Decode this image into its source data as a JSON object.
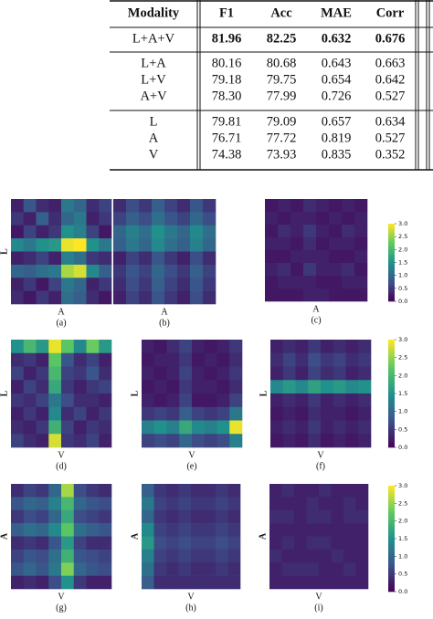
{
  "table": {
    "header": [
      "Modality",
      "F1",
      "Acc",
      "MAE",
      "Corr"
    ],
    "rows": [
      [
        "L+A+V",
        "81.96",
        "82.25",
        "0.632",
        "0.676"
      ],
      [
        "L+A",
        "80.16",
        "80.68",
        "0.643",
        "0.663"
      ],
      [
        "L+V",
        "79.18",
        "79.75",
        "0.654",
        "0.642"
      ],
      [
        "A+V",
        "78.30",
        "77.99",
        "0.726",
        "0.527"
      ],
      [
        "L",
        "79.81",
        "79.09",
        "0.657",
        "0.634"
      ],
      [
        "A",
        "76.71",
        "77.72",
        "0.819",
        "0.527"
      ],
      [
        "V",
        "74.38",
        "73.93",
        "0.835",
        "0.352"
      ]
    ]
  },
  "figures": [
    {
      "label": "(a)",
      "x_label": "A",
      "y_label": "L",
      "values": [
        [
          0.3,
          0.8,
          0.4,
          0.3,
          1.2,
          1.0,
          0.4,
          0.6
        ],
        [
          0.5,
          0.3,
          0.9,
          0.4,
          1.0,
          1.2,
          0.3,
          0.5
        ],
        [
          0.2,
          0.6,
          0.3,
          0.5,
          1.5,
          1.3,
          0.6,
          0.2
        ],
        [
          1.4,
          1.2,
          1.5,
          1.6,
          2.9,
          3.0,
          1.5,
          1.2
        ],
        [
          0.3,
          0.4,
          0.6,
          0.3,
          1.3,
          1.1,
          0.5,
          0.4
        ],
        [
          1.0,
          0.9,
          1.1,
          1.2,
          2.6,
          2.8,
          1.4,
          0.9
        ],
        [
          0.3,
          0.5,
          0.2,
          0.6,
          1.2,
          1.0,
          0.3,
          0.5
        ],
        [
          0.4,
          0.2,
          0.5,
          0.3,
          1.1,
          0.9,
          0.4,
          0.2
        ]
      ]
    },
    {
      "label": "(b)",
      "x_label": "A",
      "values": [
        [
          0.4,
          0.7,
          0.5,
          0.9,
          0.6,
          0.4,
          0.8,
          0.5
        ],
        [
          0.6,
          0.9,
          0.7,
          1.1,
          0.8,
          0.6,
          1.0,
          0.7
        ],
        [
          1.0,
          1.3,
          1.1,
          1.5,
          1.2,
          1.0,
          1.4,
          1.1
        ],
        [
          0.9,
          1.2,
          1.0,
          1.4,
          1.1,
          0.9,
          1.3,
          1.0
        ],
        [
          0.3,
          0.6,
          0.4,
          0.8,
          0.5,
          0.3,
          0.7,
          0.4
        ],
        [
          0.5,
          0.8,
          0.6,
          1.0,
          0.7,
          0.5,
          0.9,
          0.6
        ],
        [
          0.4,
          0.7,
          0.5,
          0.9,
          0.6,
          0.4,
          0.8,
          0.5
        ],
        [
          0.3,
          0.6,
          0.4,
          0.8,
          0.5,
          0.3,
          0.7,
          0.4
        ]
      ]
    },
    {
      "label": "(c)",
      "x_label": "A",
      "values": [
        [
          0.2,
          0.3,
          0.2,
          0.4,
          0.3,
          0.2,
          0.3,
          0.2
        ],
        [
          0.3,
          0.2,
          0.3,
          0.3,
          0.2,
          0.3,
          0.2,
          0.3
        ],
        [
          0.2,
          0.4,
          0.3,
          0.5,
          0.3,
          0.2,
          0.4,
          0.3
        ],
        [
          0.3,
          0.3,
          0.2,
          0.4,
          0.2,
          0.3,
          0.3,
          0.2
        ],
        [
          0.2,
          0.2,
          0.3,
          0.3,
          0.3,
          0.2,
          0.2,
          0.3
        ],
        [
          0.3,
          0.4,
          0.2,
          0.5,
          0.3,
          0.3,
          0.4,
          0.2
        ],
        [
          0.2,
          0.3,
          0.3,
          0.3,
          0.2,
          0.2,
          0.3,
          0.3
        ],
        [
          0.2,
          0.2,
          0.2,
          0.3,
          0.3,
          0.2,
          0.2,
          0.2
        ]
      ]
    },
    {
      "label": "(d)",
      "x_label": "V",
      "y_label": "L",
      "values": [
        [
          1.5,
          2.0,
          1.6,
          2.9,
          2.2,
          1.4,
          2.3,
          1.6
        ],
        [
          0.4,
          0.5,
          0.3,
          2.2,
          0.8,
          0.4,
          0.6,
          0.3
        ],
        [
          0.6,
          0.3,
          0.5,
          2.0,
          0.6,
          0.5,
          0.8,
          0.4
        ],
        [
          0.3,
          0.6,
          0.4,
          1.8,
          0.5,
          0.3,
          0.5,
          0.6
        ],
        [
          0.5,
          0.4,
          0.6,
          1.2,
          0.7,
          0.4,
          0.4,
          0.3
        ],
        [
          0.3,
          0.5,
          0.3,
          1.4,
          0.4,
          0.6,
          0.3,
          0.5
        ],
        [
          0.4,
          0.3,
          0.5,
          1.9,
          0.6,
          0.3,
          0.5,
          0.4
        ],
        [
          0.6,
          0.4,
          0.3,
          2.8,
          0.5,
          0.4,
          0.6,
          0.3
        ]
      ]
    },
    {
      "label": "(e)",
      "x_label": "V",
      "y_label": "L",
      "values": [
        [
          0.3,
          0.2,
          0.4,
          0.6,
          0.3,
          0.2,
          0.3,
          0.5
        ],
        [
          0.2,
          0.3,
          0.3,
          0.5,
          0.2,
          0.3,
          0.2,
          0.4
        ],
        [
          0.3,
          0.2,
          0.3,
          0.6,
          0.3,
          0.2,
          0.3,
          0.5
        ],
        [
          0.2,
          0.3,
          0.2,
          0.5,
          0.3,
          0.3,
          0.2,
          0.4
        ],
        [
          0.3,
          0.2,
          0.3,
          0.6,
          0.2,
          0.2,
          0.3,
          0.6
        ],
        [
          0.5,
          0.6,
          0.5,
          0.9,
          0.6,
          0.5,
          0.6,
          1.2
        ],
        [
          1.3,
          1.5,
          1.3,
          1.8,
          1.4,
          1.3,
          1.5,
          2.9
        ],
        [
          0.6,
          0.7,
          0.6,
          1.0,
          0.7,
          0.6,
          0.7,
          1.3
        ]
      ]
    },
    {
      "label": "(f)",
      "x_label": "V",
      "y_label": "L",
      "values": [
        [
          0.3,
          0.4,
          0.3,
          0.5,
          0.3,
          0.4,
          0.3,
          0.4
        ],
        [
          0.4,
          0.6,
          0.4,
          0.7,
          0.5,
          0.6,
          0.4,
          0.5
        ],
        [
          0.3,
          0.5,
          0.3,
          0.6,
          0.4,
          0.5,
          0.3,
          0.4
        ],
        [
          1.4,
          1.6,
          1.4,
          1.7,
          1.5,
          1.6,
          1.4,
          1.5
        ],
        [
          0.3,
          0.4,
          0.3,
          0.5,
          0.3,
          0.4,
          0.3,
          0.4
        ],
        [
          0.2,
          0.3,
          0.2,
          0.4,
          0.3,
          0.3,
          0.2,
          0.3
        ],
        [
          0.3,
          0.4,
          0.3,
          0.5,
          0.3,
          0.4,
          0.3,
          0.4
        ],
        [
          0.2,
          0.3,
          0.2,
          0.4,
          0.2,
          0.3,
          0.2,
          0.3
        ]
      ]
    },
    {
      "label": "(g)",
      "x_label": "V",
      "y_label": "A",
      "values": [
        [
          0.4,
          0.6,
          0.5,
          1.0,
          2.6,
          0.7,
          0.5,
          0.4
        ],
        [
          0.8,
          1.0,
          0.9,
          1.3,
          2.0,
          1.0,
          0.8,
          0.7
        ],
        [
          0.5,
          0.7,
          0.6,
          1.0,
          1.8,
          0.7,
          0.6,
          0.5
        ],
        [
          0.9,
          1.1,
          1.0,
          1.4,
          2.2,
          1.1,
          0.9,
          0.8
        ],
        [
          0.4,
          0.5,
          0.4,
          0.8,
          1.6,
          0.6,
          0.4,
          0.4
        ],
        [
          0.6,
          0.8,
          0.7,
          1.1,
          1.9,
          0.8,
          0.7,
          0.6
        ],
        [
          0.8,
          1.0,
          0.8,
          1.2,
          2.4,
          1.0,
          0.8,
          0.7
        ],
        [
          0.3,
          0.4,
          0.3,
          0.7,
          1.5,
          0.5,
          0.3,
          0.3
        ]
      ]
    },
    {
      "label": "(h)",
      "x_label": "V",
      "y_label": "A",
      "values": [
        [
          0.9,
          0.5,
          0.4,
          0.5,
          0.4,
          0.4,
          0.5,
          0.4
        ],
        [
          1.2,
          0.6,
          0.5,
          0.6,
          0.5,
          0.5,
          0.6,
          0.5
        ],
        [
          1.0,
          0.5,
          0.4,
          0.5,
          0.4,
          0.4,
          0.5,
          0.4
        ],
        [
          1.4,
          0.6,
          0.5,
          0.6,
          0.5,
          0.5,
          0.6,
          0.5
        ],
        [
          1.6,
          0.7,
          0.6,
          0.7,
          0.6,
          0.6,
          0.7,
          0.6
        ],
        [
          1.3,
          0.6,
          0.5,
          0.6,
          0.5,
          0.5,
          0.6,
          0.5
        ],
        [
          1.1,
          0.5,
          0.4,
          0.5,
          0.4,
          0.4,
          0.5,
          0.4
        ],
        [
          0.9,
          0.4,
          0.4,
          0.4,
          0.4,
          0.4,
          0.4,
          0.4
        ]
      ]
    },
    {
      "label": "(i)",
      "x_label": "V",
      "y_label": "A",
      "values": [
        [
          0.3,
          0.4,
          0.3,
          0.3,
          0.4,
          0.3,
          0.3,
          0.3
        ],
        [
          0.3,
          0.3,
          0.3,
          0.4,
          0.3,
          0.3,
          0.4,
          0.3
        ],
        [
          0.4,
          0.4,
          0.3,
          0.4,
          0.4,
          0.3,
          0.4,
          0.4
        ],
        [
          0.3,
          0.3,
          0.3,
          0.3,
          0.3,
          0.3,
          0.3,
          0.3
        ],
        [
          0.3,
          0.4,
          0.3,
          0.4,
          0.4,
          0.3,
          0.3,
          0.3
        ],
        [
          0.4,
          0.3,
          0.3,
          0.3,
          0.3,
          0.4,
          0.3,
          0.3
        ],
        [
          0.3,
          0.4,
          0.4,
          0.4,
          0.3,
          0.3,
          0.4,
          0.3
        ],
        [
          0.3,
          0.3,
          0.3,
          0.3,
          0.3,
          0.3,
          0.3,
          0.3
        ]
      ]
    }
  ],
  "colorbar": {
    "lim": [
      0,
      3
    ],
    "ticks": [
      {
        "value": 0,
        "label": "0.0"
      },
      {
        "value": 0.5,
        "label": "0.5"
      },
      {
        "value": 1,
        "label": "1.0"
      },
      {
        "value": 1.5,
        "label": "1.5"
      },
      {
        "value": 2,
        "label": "2.0"
      },
      {
        "value": 2.5,
        "label": "2.5"
      },
      {
        "value": 3,
        "label": "3.0"
      }
    ]
  }
}
